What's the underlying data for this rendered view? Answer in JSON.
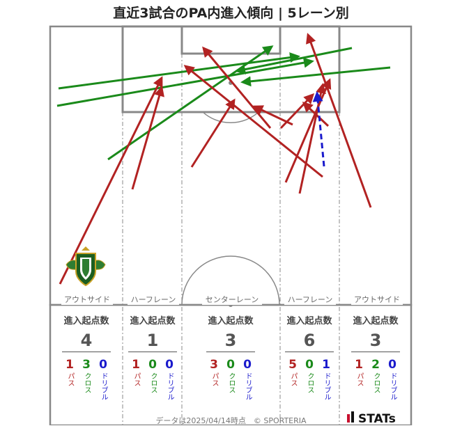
{
  "title": "直近3試合のPA内進入傾向 | 5レーン別",
  "footer": "データは2025/04/14時点　© SPORTERIA",
  "logo": "STATs",
  "lanes": [
    {
      "name": "アウトサイド",
      "head": "進入起点数",
      "total": "4",
      "pass": "1",
      "cross": "3",
      "dribble": "0"
    },
    {
      "name": "ハーフレーン",
      "head": "進入起点数",
      "total": "1",
      "pass": "1",
      "cross": "0",
      "dribble": "0"
    },
    {
      "name": "センターレーン",
      "head": "進入起点数",
      "total": "3",
      "pass": "3",
      "cross": "0",
      "dribble": "0"
    },
    {
      "name": "ハーフレーン",
      "head": "進入起点数",
      "total": "6",
      "pass": "5",
      "cross": "0",
      "dribble": "1"
    },
    {
      "name": "アウトサイド",
      "head": "進入起点数",
      "total": "3",
      "pass": "1",
      "cross": "2",
      "dribble": "0"
    }
  ],
  "labels": {
    "pass": "パス",
    "cross": "クロス",
    "dribble": "ドリブル"
  },
  "colors": {
    "pass": "#b22222",
    "cross": "#1a8a1a",
    "dribble": "#1a1acc"
  },
  "badge_icon": "club-crest-icon"
}
